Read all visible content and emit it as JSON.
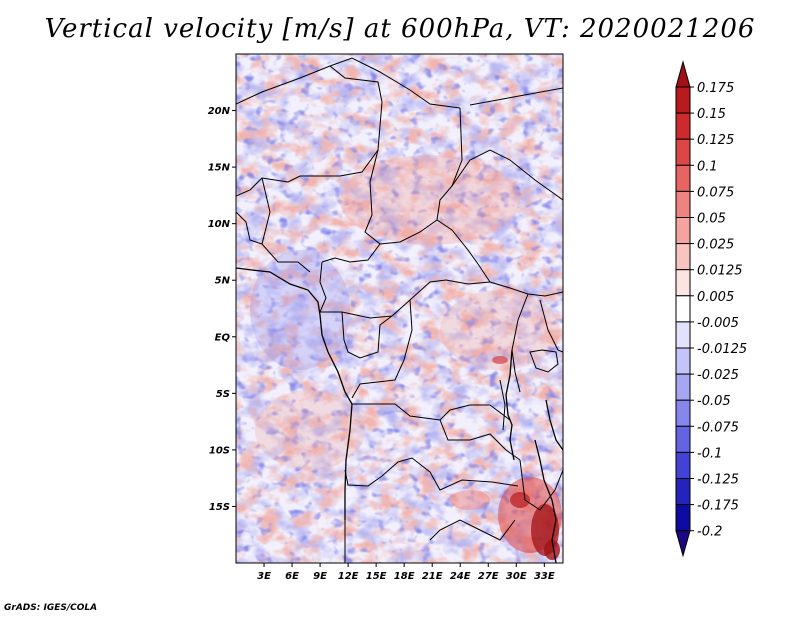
{
  "title": "Vertical velocity [m/s] at 600hPa, VT: 2020021206",
  "footer": "GrADS: IGES/COLA",
  "map": {
    "lon_range": [
      0,
      35
    ],
    "lat_range": [
      -20,
      25
    ],
    "lon_ticks": [
      {
        "lon": 3,
        "label": "3E"
      },
      {
        "lon": 6,
        "label": "6E"
      },
      {
        "lon": 9,
        "label": "9E"
      },
      {
        "lon": 12,
        "label": "12E"
      },
      {
        "lon": 15,
        "label": "15E"
      },
      {
        "lon": 18,
        "label": "18E"
      },
      {
        "lon": 21,
        "label": "21E"
      },
      {
        "lon": 24,
        "label": "24E"
      },
      {
        "lon": 27,
        "label": "27E"
      },
      {
        "lon": 30,
        "label": "30E"
      },
      {
        "lon": 33,
        "label": "33E"
      }
    ],
    "lat_ticks": [
      {
        "lat": 20,
        "label": "20N"
      },
      {
        "lat": 15,
        "label": "15N"
      },
      {
        "lat": 10,
        "label": "10N"
      },
      {
        "lat": 5,
        "label": "5N"
      },
      {
        "lat": 0,
        "label": "EQ"
      },
      {
        "lat": -5,
        "label": "5S"
      },
      {
        "lat": -10,
        "label": "10S"
      },
      {
        "lat": -15,
        "label": "15S"
      }
    ]
  },
  "colorbar": {
    "labels": [
      "0.175",
      "0.15",
      "0.125",
      "0.1",
      "0.075",
      "0.05",
      "0.025",
      "0.0125",
      "0.005",
      "-0.005",
      "-0.0125",
      "-0.025",
      "-0.05",
      "-0.075",
      "-0.1",
      "-0.125",
      "-0.175",
      "-0.2"
    ],
    "colors": [
      "#a01014",
      "#b81a1e",
      "#cc2a2c",
      "#dc4644",
      "#e66462",
      "#ee8480",
      "#f4a39e",
      "#f8c4c0",
      "#fce4e2",
      "#ffffff",
      "#e2e2fc",
      "#c4c4f8",
      "#a6a6f2",
      "#8686ec",
      "#6464e2",
      "#4242d4",
      "#2424bc",
      "#0c0ca2",
      "#1a0884"
    ]
  }
}
